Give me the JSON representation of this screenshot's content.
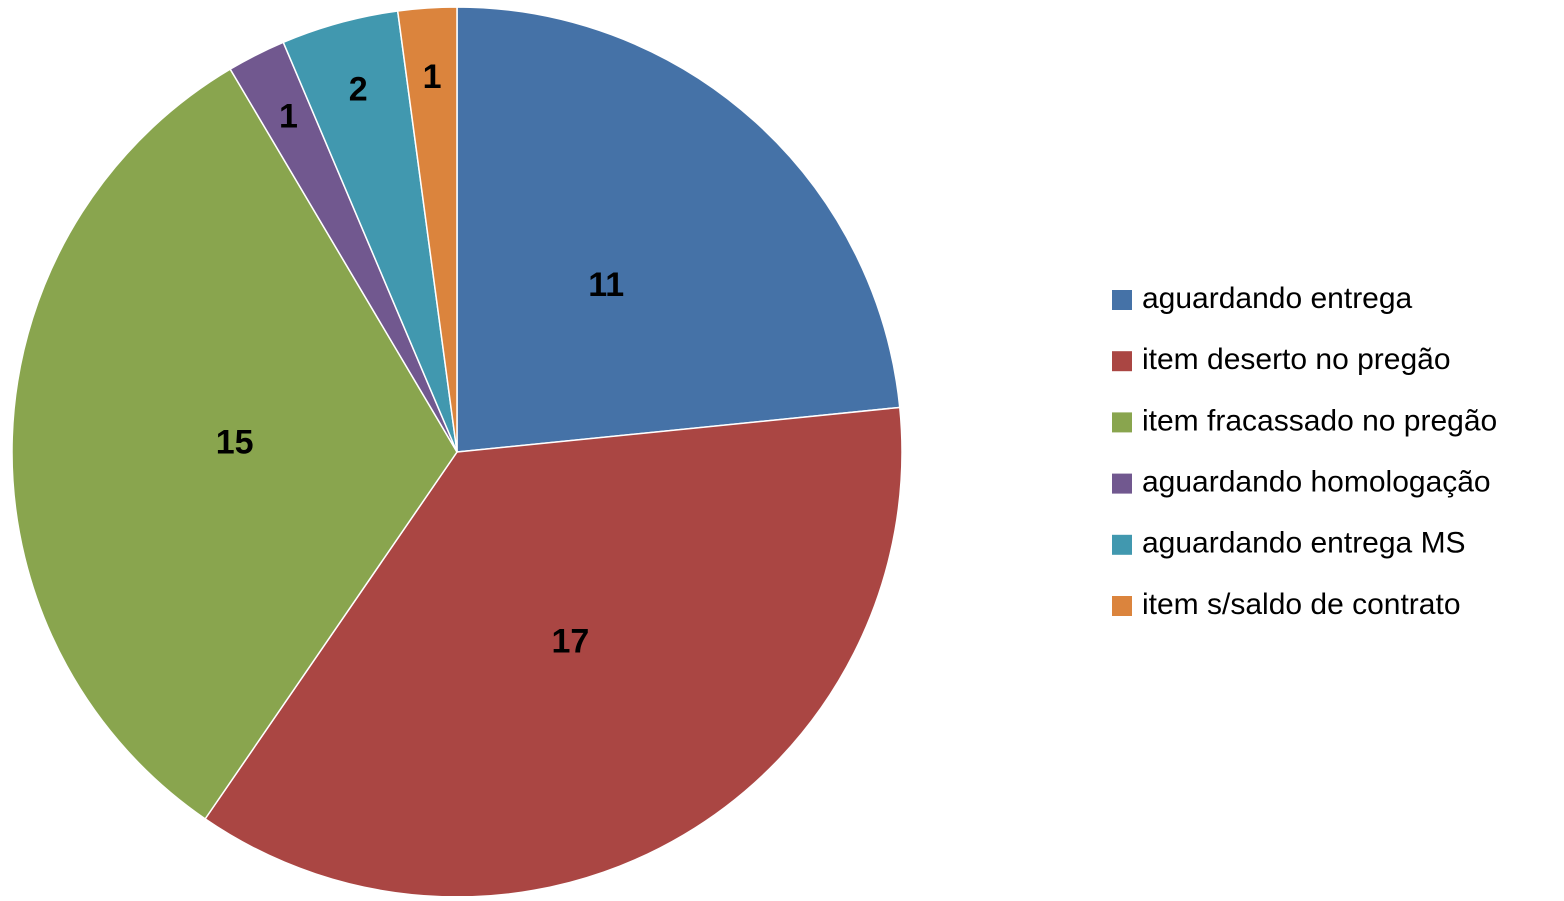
{
  "chart_data": {
    "type": "pie",
    "categories": [
      "aguardando entrega",
      "item deserto no pregão",
      "item fracassado no pregão",
      "aguardando homologação",
      "aguardando entrega MS",
      "item s/saldo de contrato"
    ],
    "values": [
      11,
      17,
      15,
      1,
      2,
      1
    ],
    "colors": [
      "#4572A7",
      "#AA4643",
      "#89A54E",
      "#71588F",
      "#4198AF",
      "#DB843D"
    ],
    "legend": "right"
  }
}
